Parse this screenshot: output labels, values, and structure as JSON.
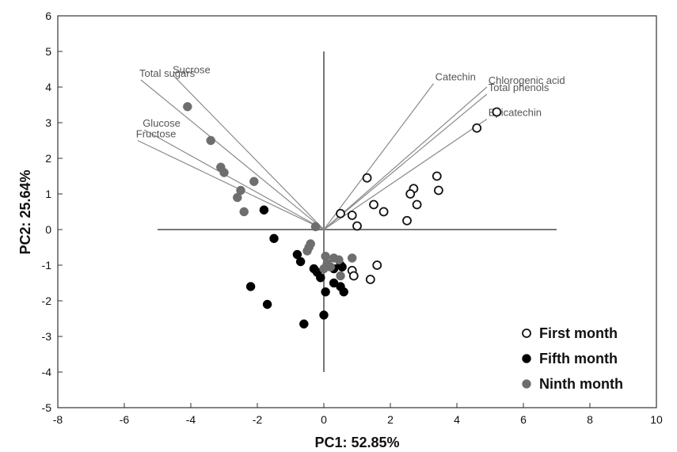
{
  "chart_data": {
    "type": "scatter",
    "xlabel": "PC1: 52.85%",
    "ylabel": "PC2: 25.64%",
    "xlim": [
      -8,
      10
    ],
    "ylim": [
      -5,
      6
    ],
    "xticks": [
      -8,
      -6,
      -4,
      -2,
      0,
      2,
      4,
      6,
      8,
      10
    ],
    "yticks": [
      -5,
      -4,
      -3,
      -2,
      -1,
      0,
      1,
      2,
      3,
      4,
      5,
      6
    ],
    "grid": false,
    "legend_position": "bottom-right",
    "reference_lines": {
      "horizontal": {
        "y": 0,
        "x_from": -5,
        "x_to": 7
      },
      "vertical": {
        "x": 0,
        "y_from": -4,
        "y_to": 5
      }
    },
    "loading_vectors": [
      {
        "name": "Total sugars",
        "x": -5.5,
        "y": 4.2
      },
      {
        "name": "Sucrose",
        "x": -4.5,
        "y": 4.3
      },
      {
        "name": "Glucose",
        "x": -5.4,
        "y": 2.8
      },
      {
        "name": "Fructose",
        "x": -5.6,
        "y": 2.5
      },
      {
        "name": "Catechin",
        "x": 3.3,
        "y": 4.1
      },
      {
        "name": "Chlorogenic acid",
        "x": 4.9,
        "y": 4.0
      },
      {
        "name": "Total phenols",
        "x": 4.9,
        "y": 3.8
      },
      {
        "name": "Epicatechin",
        "x": 4.9,
        "y": 3.1
      }
    ],
    "series": [
      {
        "name": "First month",
        "marker": "open-circle",
        "color": "#111111",
        "points": [
          [
            5.2,
            3.3
          ],
          [
            4.6,
            2.85
          ],
          [
            3.4,
            1.5
          ],
          [
            3.45,
            1.1
          ],
          [
            2.7,
            1.15
          ],
          [
            2.6,
            1.0
          ],
          [
            2.8,
            0.7
          ],
          [
            2.5,
            0.25
          ],
          [
            1.3,
            1.45
          ],
          [
            1.5,
            0.7
          ],
          [
            1.8,
            0.5
          ],
          [
            0.85,
            0.4
          ],
          [
            0.5,
            0.45
          ],
          [
            1.0,
            0.1
          ],
          [
            1.6,
            -1.0
          ],
          [
            0.85,
            -1.15
          ],
          [
            0.9,
            -1.3
          ],
          [
            1.4,
            -1.4
          ]
        ]
      },
      {
        "name": "Fifth month",
        "marker": "filled-circle",
        "color": "#000000",
        "points": [
          [
            -1.8,
            0.55
          ],
          [
            -1.5,
            -0.25
          ],
          [
            -0.8,
            -0.7
          ],
          [
            -0.7,
            -0.9
          ],
          [
            -0.3,
            -1.1
          ],
          [
            -0.1,
            -1.35
          ],
          [
            -0.2,
            -1.2
          ],
          [
            0.3,
            -1.1
          ],
          [
            0.5,
            -1.0
          ],
          [
            0.55,
            -1.05
          ],
          [
            0.3,
            -1.5
          ],
          [
            0.5,
            -1.6
          ],
          [
            0.6,
            -1.75
          ],
          [
            0.05,
            -1.75
          ],
          [
            -2.2,
            -1.6
          ],
          [
            -1.7,
            -2.1
          ],
          [
            -0.6,
            -2.65
          ],
          [
            0.0,
            -2.4
          ]
        ]
      },
      {
        "name": "Ninth month",
        "marker": "filled-circle",
        "color": "#6e6e6e",
        "points": [
          [
            -4.1,
            3.45
          ],
          [
            -3.4,
            2.5
          ],
          [
            -3.1,
            1.75
          ],
          [
            -3.0,
            1.6
          ],
          [
            -2.1,
            1.35
          ],
          [
            -2.5,
            1.1
          ],
          [
            -2.6,
            0.9
          ],
          [
            -2.4,
            0.5
          ],
          [
            -0.25,
            0.08
          ],
          [
            -0.45,
            -0.5
          ],
          [
            -0.5,
            -0.6
          ],
          [
            -0.4,
            -0.4
          ],
          [
            0.05,
            -0.75
          ],
          [
            0.3,
            -0.8
          ],
          [
            0.1,
            -0.95
          ],
          [
            0.2,
            -1.05
          ],
          [
            0.5,
            -1.3
          ],
          [
            0.85,
            -0.8
          ],
          [
            0.45,
            -0.85
          ],
          [
            0.0,
            -1.1
          ]
        ]
      }
    ]
  }
}
